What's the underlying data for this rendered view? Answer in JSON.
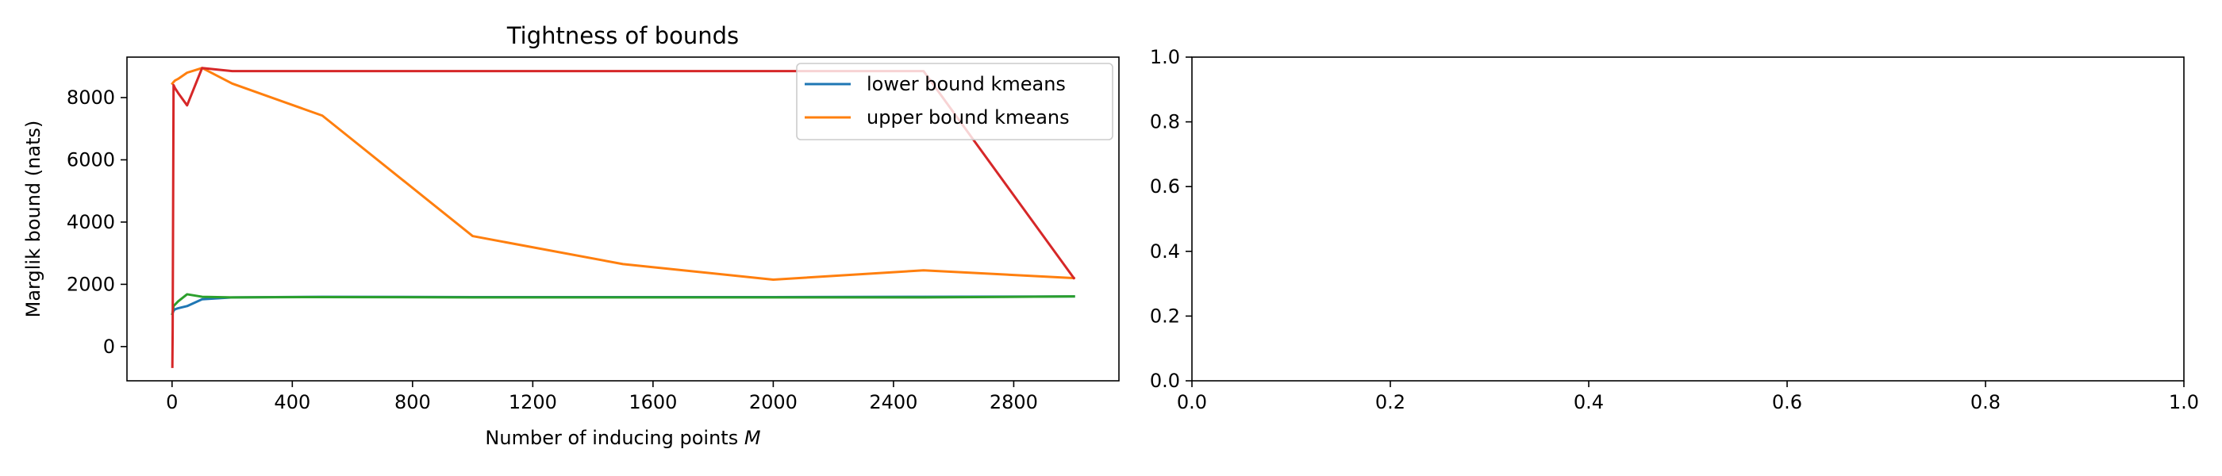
{
  "chart_data": [
    {
      "type": "line",
      "title": "Tightness of bounds",
      "xlabel": "Number of inducing points",
      "xlabel_symbol": "M",
      "ylabel": "Marglik bound (nats)",
      "xlim": [
        -150,
        3150
      ],
      "ylim": [
        -1100,
        9300
      ],
      "xticks": [
        0,
        400,
        800,
        1200,
        1600,
        2000,
        2400,
        2800
      ],
      "yticks": [
        0,
        2000,
        4000,
        6000,
        8000
      ],
      "legend_position": "top-right",
      "series": [
        {
          "name": "lower bound kmeans",
          "color": "#1f77b4",
          "x": [
            1,
            5,
            10,
            20,
            50,
            100,
            200,
            500,
            1000,
            1500,
            2000,
            2500,
            3000
          ],
          "y": [
            1050,
            1150,
            1200,
            1230,
            1300,
            1520,
            1580,
            1600,
            1590,
            1590,
            1590,
            1600,
            1610
          ]
        },
        {
          "name": "upper bound kmeans",
          "color": "#ff7f0e",
          "x": [
            1,
            5,
            10,
            20,
            50,
            100,
            200,
            500,
            1000,
            1500,
            2000,
            2500,
            3000
          ],
          "y": [
            8450,
            8500,
            8550,
            8600,
            8800,
            8950,
            8450,
            7420,
            3550,
            2650,
            2150,
            2450,
            2200
          ]
        },
        {
          "color": "#2ca02c",
          "x": [
            1,
            5,
            10,
            20,
            50,
            100,
            200,
            500,
            1000,
            1500,
            2000,
            2500,
            3000
          ],
          "y": [
            1050,
            1300,
            1350,
            1450,
            1680,
            1600,
            1580,
            1590,
            1580,
            1580,
            1580,
            1580,
            1610
          ]
        },
        {
          "color": "#d62728",
          "x": [
            1,
            2,
            5,
            10,
            20,
            50,
            100,
            200,
            500,
            1000,
            1500,
            2000,
            2500,
            3000
          ],
          "y": [
            -650,
            500,
            8400,
            8300,
            8150,
            7750,
            8950,
            8850,
            8850,
            8850,
            8850,
            8850,
            8850,
            2200
          ]
        }
      ]
    },
    {
      "type": "line",
      "title": "",
      "xlim": [
        0,
        1
      ],
      "ylim": [
        0,
        1
      ],
      "xticks": [
        "0.0",
        "0.2",
        "0.4",
        "0.6",
        "0.8",
        "1.0"
      ],
      "yticks": [
        "0.0",
        "0.2",
        "0.4",
        "0.6",
        "0.8",
        "1.0"
      ],
      "series": []
    }
  ]
}
